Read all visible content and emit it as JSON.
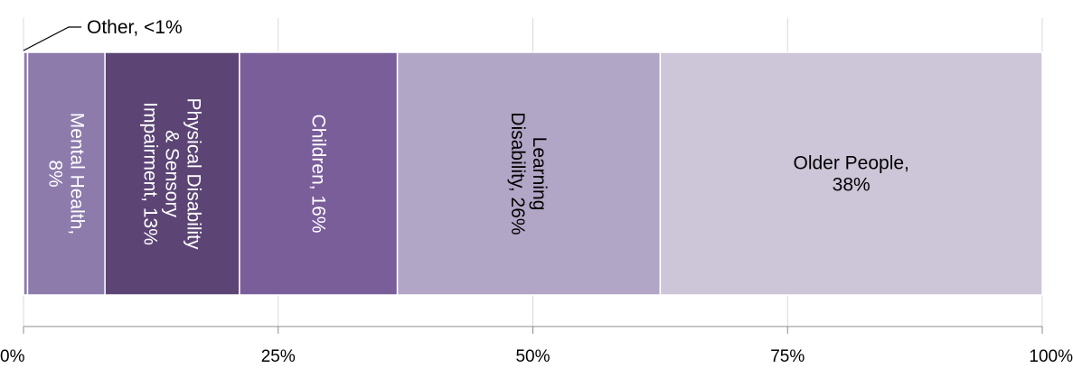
{
  "chart_data": {
    "type": "bar",
    "orientation": "horizontal",
    "stacked": true,
    "xlim": [
      0,
      100
    ],
    "grid": true,
    "ticks": [
      {
        "value": 0,
        "label": "0%"
      },
      {
        "value": 25,
        "label": "25%"
      },
      {
        "value": 50,
        "label": "50%"
      },
      {
        "value": 75,
        "label": "75%"
      },
      {
        "value": 100,
        "label": "100%"
      }
    ],
    "segments": [
      {
        "name": "Other",
        "value": 0.4,
        "color": "#8c7bab",
        "text_color": "#ffffff",
        "lines": []
      },
      {
        "name": "Mental Health",
        "value": 7.6,
        "color": "#8c7bab",
        "text_color": "#ffffff",
        "lines": [
          "Mental Health,",
          "8%"
        ],
        "rotation": 90
      },
      {
        "name": "Physical Disability & Sensory Impairment",
        "value": 13.2,
        "color": "#5c4575",
        "text_color": "#ffffff",
        "lines": [
          "Physical Disability",
          "& Sensory",
          "Impairment, 13%"
        ],
        "rotation": 90
      },
      {
        "name": "Children",
        "value": 15.5,
        "color": "#7a5e9a",
        "text_color": "#ffffff",
        "lines": [
          "Children, 16%"
        ],
        "rotation": 90
      },
      {
        "name": "Learning Disability",
        "value": 25.8,
        "color": "#b2a6c6",
        "text_color": "#000000",
        "lines": [
          "Learning",
          "Disability, 26%"
        ],
        "rotation": 90
      },
      {
        "name": "Older People",
        "value": 37.5,
        "color": "#cdc5d8",
        "text_color": "#000000",
        "lines": [
          "Older People,",
          "38%"
        ],
        "rotation": 0
      }
    ],
    "callout": {
      "text": "Other, <1%"
    }
  }
}
